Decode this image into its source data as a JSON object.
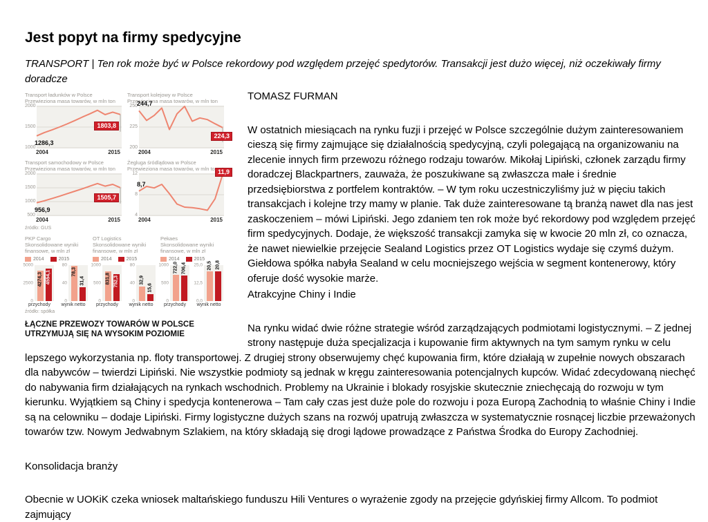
{
  "content": {
    "title": "Jest popyt na firmy spedycyjne",
    "subtitle": "TRANSPORT | Ten rok może być w Polsce rekordowy pod względem przejęć spedytorów. Transakcji jest dużo więcej, niż oczekiwały firmy doradcze",
    "author": "TOMASZ FURMAN",
    "paragraph_1": "W ostatnich miesiącach na rynku fuzji i przejęć w Polsce szczególnie dużym zainteresowaniem cieszą się firmy zajmujące się działalnością spedycyjną, czyli polegającą na organizowaniu na zlecenie innych firm przewozu różnego rodzaju towarów. Mikołaj Lipiński, członek zarządu firmy doradczej Blackpartners, zauważa, że poszukiwane są zwłaszcza małe i średnie przedsiębiorstwa z portfelem kontraktów. – W tym roku uczestniczyliśmy już w pięciu takich transakcjach i kolejne trzy mamy w planie. Tak duże zainteresowane tą branżą nawet dla nas jest zaskoczeniem – mówi Lipiński. Jego zdaniem ten rok może być rekordowy pod względem przejęć firm spedycyjnych. Dodaje, że większość transakcji zamyka się w kwocie 20 mln zł, co oznacza, że nawet niewielkie przejęcie Sealand Logistics przez OT Logistics wydaje się czymś dużym. Giełdowa spółka nabyła Sealand w celu mocniejszego wejścia w segment kontenerowy, który oferuje dość wysokie marże.",
    "section_heading_1": "Atrakcyjne Chiny i Indie",
    "paragraph_2": "Na rynku widać dwie różne strategie wśród zarządzających podmiotami logistycznymi. – Z jednej strony następuje duża specjalizacja i kupowanie firm aktywnych na tym samym rynku w celu lepszego wykorzystania np. floty transportowej. Z drugiej strony obserwujemy chęć kupowania firm, które działają w zupełnie nowych obszarach dla nabywców – twierdzi Lipiński. Nie wszystkie podmioty są jednak w kręgu zainteresowania potencjalnych kupców. Widać zdecydowaną niechęć do nabywania firm działających na rynkach wschodnich. Problemy na Ukrainie i blokady rosyjskie skutecznie zniechęcają do rozwoju w tym kierunku. Wyjątkiem są Chiny i spedycja kontenerowa – Tam cały czas jest duże pole do rozwoju i poza Europą Zachodnią to właśnie Chiny i Indie są na celowniku – dodaje Lipiński. Firmy logistyczne dużych szans na rozwój upatrują zwłaszcza w systematycznie rosnącej liczbie przeważonych towarów tzw. Nowym Jedwabnym Szlakiem, na który składają się drogi lądowe prowadzące z Państwa Środka do Europy Zachodniej.",
    "section_heading_2": "Konsolidacja branży",
    "paragraph_3": "Obecnie w UOKiK czeka wniosek maltańskiego funduszu Hili Ventures o wyrażenie zgody na przejęcie gdyńskiej firmy Allcom. To podmiot zajmujący"
  },
  "figure": {
    "caption": "ŁĄCZNE PRZEWOZY TOWARÓW W POLSCE UTRZYMUJĄ SIĘ NA WYSOKIM POZIOMIE",
    "line_charts_source": "źródło: GUS",
    "bar_charts_source": "źródło: spółka"
  },
  "colors": {
    "line_salmon": "#ee8570",
    "bar_2014_salmon": "#f2a28c",
    "bar_2015_red": "#c11a21",
    "value_box_red": "#d0202a",
    "chart_bg": "#f2f1ed",
    "gridline": "#dcd9d4"
  },
  "chart_data": [
    {
      "type": "line",
      "title": "Transport ładunków w Polsce",
      "subtitle": "Przewieziona masa towarów, w mln ton",
      "x": [
        2004,
        2005,
        2006,
        2007,
        2008,
        2009,
        2010,
        2011,
        2012,
        2013,
        2014,
        2015
      ],
      "values": [
        1286.3,
        1365,
        1430,
        1500,
        1575,
        1655,
        1740,
        1820,
        1905,
        1800,
        1860,
        1803.8
      ],
      "ylim": [
        1000,
        2000
      ],
      "yticks": [
        "2000",
        "1500",
        "1000"
      ],
      "xticks": [
        "2004",
        "2015"
      ],
      "first_point_label": "1286,3",
      "end_point_label": "1803,8"
    },
    {
      "type": "line",
      "title": "Transport kolejowy w Polsce",
      "subtitle": "Przewieziona masa towarów, w mln ton",
      "x": [
        2004,
        2005,
        2006,
        2007,
        2008,
        2009,
        2010,
        2011,
        2012,
        2013,
        2014,
        2015
      ],
      "values": [
        244.7,
        233,
        239,
        248,
        222,
        241,
        250,
        232,
        236,
        234,
        229,
        224.3
      ],
      "ylim": [
        200,
        250
      ],
      "yticks": [
        "250",
        "225",
        "200"
      ],
      "xticks": [
        "2004",
        "2015"
      ],
      "first_point_label": "244,7",
      "end_point_label": "224,3"
    },
    {
      "type": "line",
      "title": "Transport samochodowy w Polsce",
      "subtitle": "Przewieziona masa towarów, w mln ton",
      "x": [
        2004,
        2005,
        2006,
        2007,
        2008,
        2009,
        2010,
        2011,
        2012,
        2013,
        2014,
        2015
      ],
      "values": [
        956.9,
        1030,
        1110,
        1195,
        1285,
        1375,
        1465,
        1560,
        1655,
        1560,
        1625,
        1505.7
      ],
      "ylim": [
        500,
        2000
      ],
      "yticks": [
        "2000",
        "1500",
        "1000",
        "500"
      ],
      "xticks": [
        "2004",
        "2015"
      ],
      "first_point_label": "956,9",
      "end_point_label": "1505,7"
    },
    {
      "type": "line",
      "title": "Żegluga śródlądowa w Polsce",
      "subtitle": "Przewieziona masa towarów, w mln ton",
      "x": [
        2004,
        2005,
        2006,
        2007,
        2008,
        2009,
        2010,
        2011,
        2012,
        2013,
        2014,
        2015
      ],
      "values": [
        8.7,
        9.6,
        9.3,
        10.0,
        8.2,
        6.2,
        5.6,
        5.5,
        5.3,
        5.0,
        7.2,
        11.9
      ],
      "ylim": [
        4,
        12
      ],
      "yticks": [
        "12",
        "8",
        "4"
      ],
      "xticks": [
        "2004",
        "2015"
      ],
      "first_point_label": "8,7",
      "end_point_label": "11,9"
    },
    {
      "type": "bar",
      "company": "PKP Cargo",
      "subtitle_lines": [
        "Skonsolidowane wyniki",
        "finansowe, w mln zł"
      ],
      "legend": [
        "2014",
        "2015"
      ],
      "panels": [
        {
          "label": "przychody",
          "ylim": [
            0,
            5000
          ],
          "yticks": [
            "5000",
            "2500",
            "0"
          ],
          "values": [
            4274.3,
            4554.1
          ],
          "value_labels": [
            "4274,3",
            "4554,1"
          ],
          "label_pos": [
            "in",
            "in"
          ]
        },
        {
          "label": "wynik netto",
          "ylim": [
            0,
            80
          ],
          "yticks": [
            "80",
            "40",
            "0"
          ],
          "values": [
            78.3,
            31.4
          ],
          "value_labels": [
            "78,3",
            "31,4"
          ],
          "label_pos": [
            "in",
            "above"
          ]
        }
      ]
    },
    {
      "type": "bar",
      "company": "OT Logistics",
      "subtitle_lines": [
        "Skonsolidowane wyniki",
        "finansowe, w mln zł"
      ],
      "legend": [
        "2014",
        "2015"
      ],
      "panels": [
        {
          "label": "przychody",
          "ylim": [
            0,
            1000
          ],
          "yticks": [
            "1000",
            "500",
            "0"
          ],
          "values": [
            831.8,
            752.3
          ],
          "value_labels": [
            "831,8",
            "752,3"
          ],
          "label_pos": [
            "in",
            "in"
          ]
        },
        {
          "label": "wynik netto",
          "ylim": [
            0,
            80
          ],
          "yticks": [
            "80",
            "40",
            "0"
          ],
          "values": [
            32.9,
            15.6
          ],
          "value_labels": [
            "32,9",
            "15,6"
          ],
          "label_pos": [
            "above",
            "above"
          ]
        }
      ]
    },
    {
      "type": "bar",
      "company": "Pekaes",
      "subtitle_lines": [
        "Skonsolidowane wyniki",
        "finansowe, w mln zł"
      ],
      "legend": [
        "2014",
        "2015"
      ],
      "panels": [
        {
          "label": "przychody",
          "ylim": [
            0,
            1000
          ],
          "yticks": [
            "1000",
            "500",
            "0"
          ],
          "values": [
            722.0,
            706.4
          ],
          "value_labels": [
            "722,0",
            "706,4"
          ],
          "label_pos": [
            "above",
            "above"
          ]
        },
        {
          "label": "wynik netto",
          "ylim": [
            0,
            25
          ],
          "yticks": [
            "25,0",
            "12,5",
            "0,0"
          ],
          "values": [
            20.5,
            20.8
          ],
          "value_labels": [
            "20,5",
            "20,8"
          ],
          "label_pos": [
            "above",
            "above"
          ]
        }
      ]
    }
  ]
}
